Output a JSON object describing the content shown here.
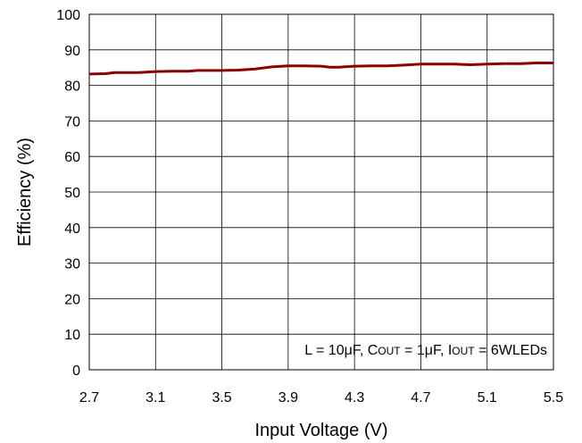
{
  "chart_data": {
    "type": "line",
    "title": "",
    "xlabel": "Input Voltage (V)",
    "ylabel": "Efficiency (%)",
    "xlim": [
      2.7,
      5.5
    ],
    "ylim": [
      0,
      100
    ],
    "xticks": [
      2.7,
      3.1,
      3.5,
      3.9,
      4.3,
      4.7,
      5.1,
      5.5
    ],
    "xtick_labels": [
      "2.7",
      "3.1",
      "3.5",
      "3.9",
      "4.3",
      "4.7",
      "5.1",
      "5.5"
    ],
    "yticks": [
      0,
      10,
      20,
      30,
      40,
      50,
      60,
      70,
      80,
      90,
      100
    ],
    "ytick_labels": [
      "0",
      "10",
      "20",
      "30",
      "40",
      "50",
      "60",
      "70",
      "80",
      "90",
      "100"
    ],
    "grid": true,
    "annotation": {
      "parts": [
        {
          "text": "L = 10μF, C",
          "sub": false
        },
        {
          "text": "OUT",
          "sub": true
        },
        {
          "text": " = 1μF, I",
          "sub": false
        },
        {
          "text": "OUT",
          "sub": true
        },
        {
          "text": " = 6WLEDs",
          "sub": false
        }
      ]
    },
    "series": [
      {
        "color": "#8b0000",
        "x": [
          2.7,
          2.8,
          2.85,
          2.9,
          3.0,
          3.1,
          3.2,
          3.3,
          3.35,
          3.4,
          3.5,
          3.6,
          3.7,
          3.8,
          3.9,
          4.0,
          4.1,
          4.15,
          4.2,
          4.3,
          4.4,
          4.5,
          4.6,
          4.7,
          4.8,
          4.9,
          5.0,
          5.1,
          5.2,
          5.3,
          5.4,
          5.5
        ],
        "y": [
          83.2,
          83.3,
          83.6,
          83.6,
          83.6,
          83.9,
          84.0,
          84.0,
          84.2,
          84.2,
          84.2,
          84.3,
          84.6,
          85.2,
          85.5,
          85.5,
          85.4,
          85.1,
          85.1,
          85.4,
          85.5,
          85.5,
          85.7,
          86.0,
          86.0,
          86.0,
          85.8,
          86.0,
          86.1,
          86.1,
          86.3,
          86.3
        ]
      }
    ]
  }
}
